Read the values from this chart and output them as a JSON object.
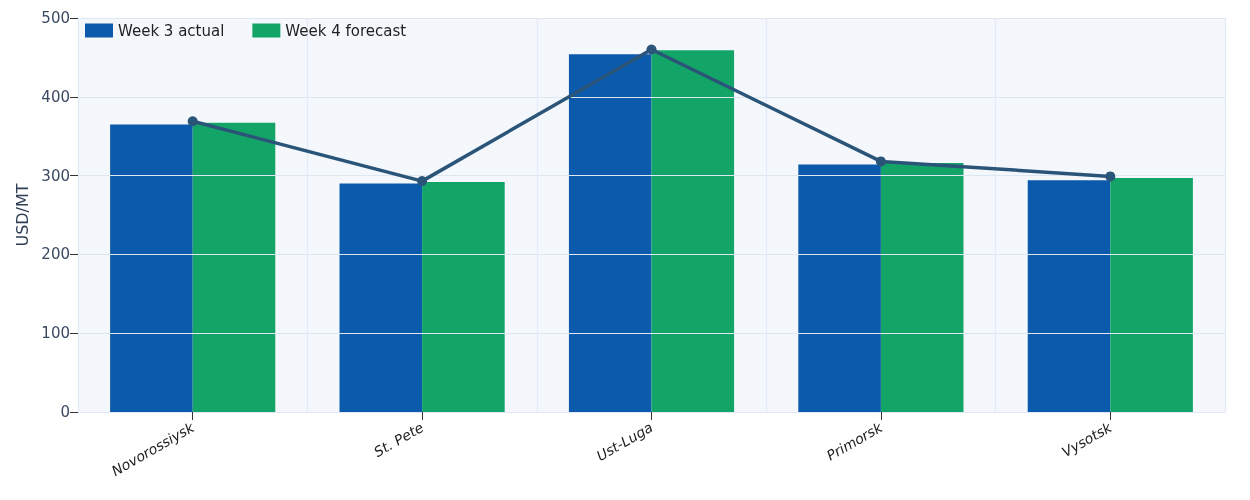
{
  "chart_data": {
    "type": "bar",
    "ylabel": "USD/MT",
    "categories": [
      "Novorossiysk",
      "St. Pete",
      "Ust-Luga",
      "Primorsk",
      "Vysotsk"
    ],
    "series": [
      {
        "name": "Week 3 actual",
        "color": "#0b5aab",
        "values": [
          365,
          290,
          454,
          314,
          294
        ]
      },
      {
        "name": "Week 4 forecast",
        "color": "#13a468",
        "values": [
          367,
          292,
          459,
          316,
          297
        ]
      },
      {
        "type": "line",
        "color": "#2b5578",
        "values": [
          369,
          293,
          460,
          318,
          299
        ]
      }
    ],
    "ylim": [
      0,
      500
    ],
    "yticks": [
      0,
      100,
      200,
      300,
      400,
      500
    ],
    "grid": true,
    "legend": "top left",
    "marker": "circle",
    "line_style": "solid"
  }
}
